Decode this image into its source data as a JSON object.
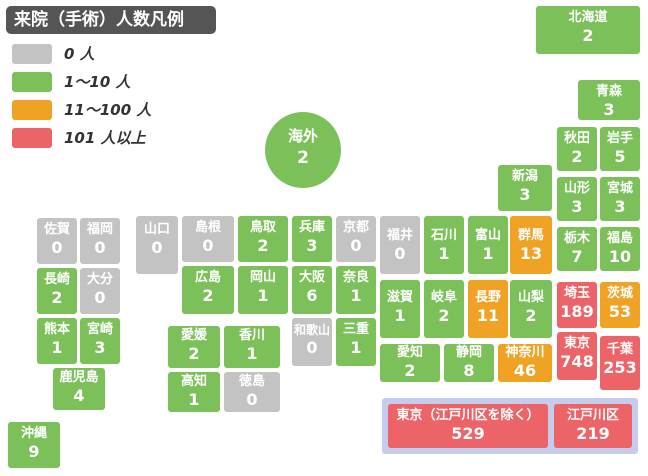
{
  "title": "来院（手術）人数凡例",
  "legend": [
    {
      "label": "0 人",
      "color": "#c3c3c3"
    },
    {
      "label": "1〜10 人",
      "color": "#7cc05a"
    },
    {
      "label": "11〜100 人",
      "color": "#f0a224"
    },
    {
      "label": "101 人以上",
      "color": "#ec6368"
    }
  ],
  "overseas": {
    "name": "海外",
    "count": "2"
  },
  "prefectures": [
    {
      "name": "北海道",
      "count": "2",
      "level": 1
    },
    {
      "name": "青森",
      "count": "3",
      "level": 1
    },
    {
      "name": "秋田",
      "count": "2",
      "level": 1
    },
    {
      "name": "岩手",
      "count": "5",
      "level": 1
    },
    {
      "name": "山形",
      "count": "3",
      "level": 1
    },
    {
      "name": "宮城",
      "count": "3",
      "level": 1
    },
    {
      "name": "新潟",
      "count": "3",
      "level": 1
    },
    {
      "name": "栃木",
      "count": "7",
      "level": 1
    },
    {
      "name": "福島",
      "count": "10",
      "level": 1
    },
    {
      "name": "群馬",
      "count": "13",
      "level": 2
    },
    {
      "name": "富山",
      "count": "1",
      "level": 1
    },
    {
      "name": "石川",
      "count": "1",
      "level": 1
    },
    {
      "name": "福井",
      "count": "0",
      "level": 0
    },
    {
      "name": "京都",
      "count": "0",
      "level": 0
    },
    {
      "name": "兵庫",
      "count": "3",
      "level": 1
    },
    {
      "name": "鳥取",
      "count": "2",
      "level": 1
    },
    {
      "name": "島根",
      "count": "0",
      "level": 0
    },
    {
      "name": "山口",
      "count": "0",
      "level": 0
    },
    {
      "name": "福岡",
      "count": "0",
      "level": 0
    },
    {
      "name": "佐賀",
      "count": "0",
      "level": 0
    },
    {
      "name": "長崎",
      "count": "2",
      "level": 1
    },
    {
      "name": "大分",
      "count": "0",
      "level": 0
    },
    {
      "name": "熊本",
      "count": "1",
      "level": 1
    },
    {
      "name": "宮崎",
      "count": "3",
      "level": 1
    },
    {
      "name": "鹿児島",
      "count": "4",
      "level": 1
    },
    {
      "name": "沖縄",
      "count": "9",
      "level": 1
    },
    {
      "name": "広島",
      "count": "2",
      "level": 1
    },
    {
      "name": "岡山",
      "count": "1",
      "level": 1
    },
    {
      "name": "大阪",
      "count": "6",
      "level": 1
    },
    {
      "name": "奈良",
      "count": "1",
      "level": 1
    },
    {
      "name": "和歌山",
      "count": "0",
      "level": 0
    },
    {
      "name": "三重",
      "count": "1",
      "level": 1
    },
    {
      "name": "滋賀",
      "count": "1",
      "level": 1
    },
    {
      "name": "岐阜",
      "count": "2",
      "level": 1
    },
    {
      "name": "長野",
      "count": "11",
      "level": 2
    },
    {
      "name": "山梨",
      "count": "2",
      "level": 1
    },
    {
      "name": "埼玉",
      "count": "189",
      "level": 3
    },
    {
      "name": "茨城",
      "count": "53",
      "level": 2
    },
    {
      "name": "東京",
      "count": "748",
      "level": 3
    },
    {
      "name": "千葉",
      "count": "253",
      "level": 3
    },
    {
      "name": "愛知",
      "count": "2",
      "level": 1
    },
    {
      "name": "静岡",
      "count": "8",
      "level": 1
    },
    {
      "name": "神奈川",
      "count": "46",
      "level": 2
    },
    {
      "name": "愛媛",
      "count": "2",
      "level": 1
    },
    {
      "name": "香川",
      "count": "1",
      "level": 1
    },
    {
      "name": "高知",
      "count": "1",
      "level": 1
    },
    {
      "name": "徳島",
      "count": "0",
      "level": 0
    }
  ],
  "tokyo_breakdown": [
    {
      "name": "東京（江戸川区を除く）",
      "count": "529",
      "level": 3
    },
    {
      "name": "江戸川区",
      "count": "219",
      "level": 3
    }
  ]
}
